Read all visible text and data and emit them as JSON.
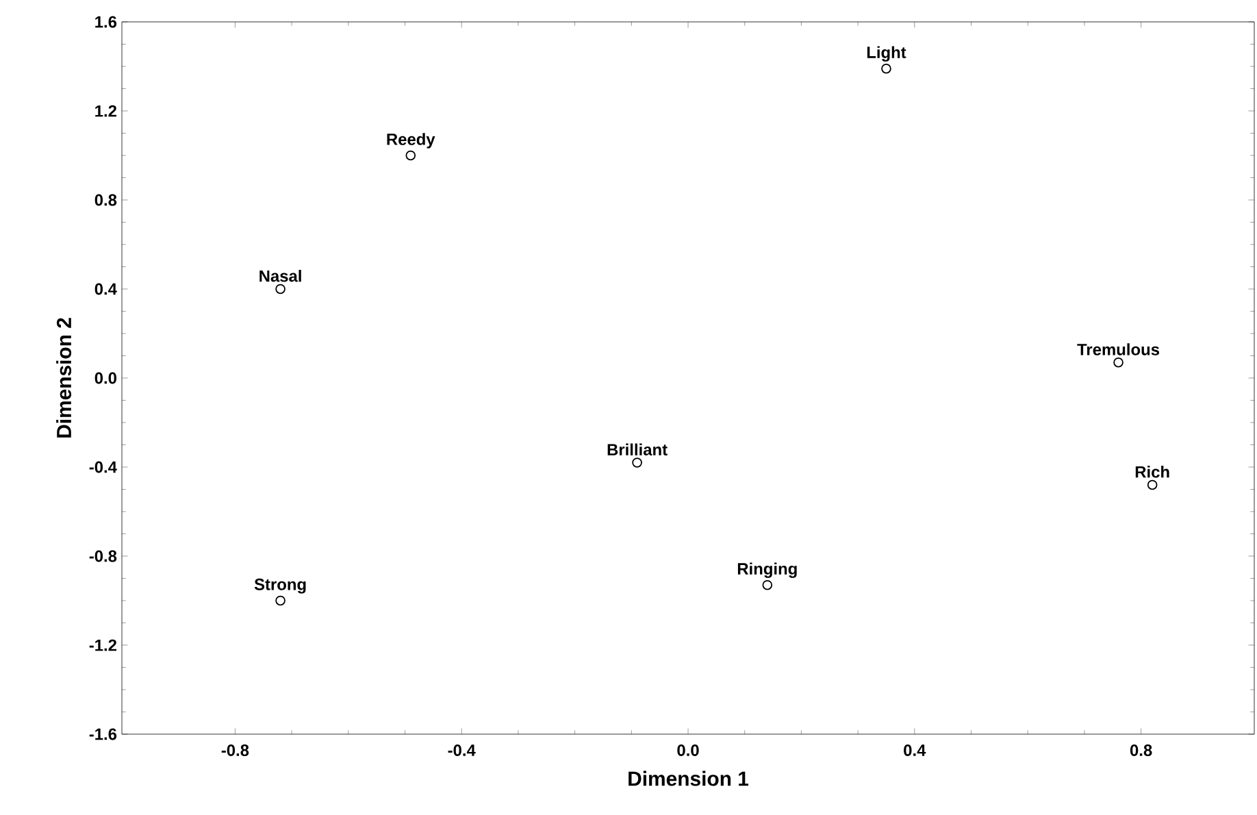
{
  "chart_data": {
    "type": "scatter",
    "xlabel": "Dimension 1",
    "ylabel": "Dimension 2",
    "x": [
      0.35,
      -0.49,
      -0.72,
      0.76,
      -0.09,
      0.82,
      0.14,
      -0.72
    ],
    "values": [
      1.39,
      1.0,
      0.4,
      0.07,
      -0.38,
      -0.48,
      -0.93,
      -1.0
    ],
    "color": "#000000",
    "marker": "circle",
    "annotations": [
      {
        "text": "Light",
        "x": 0.35,
        "y": 1.39
      },
      {
        "text": "Reedy",
        "x": -0.49,
        "y": 1.0
      },
      {
        "text": "Nasal",
        "x": -0.72,
        "y": 0.4
      },
      {
        "text": "Tremulous",
        "x": 0.76,
        "y": 0.07
      },
      {
        "text": "Brilliant",
        "x": -0.09,
        "y": -0.38
      },
      {
        "text": "Rich",
        "x": 0.82,
        "y": -0.48
      },
      {
        "text": "Ringing",
        "x": 0.14,
        "y": -0.93
      },
      {
        "text": "Strong",
        "x": -0.72,
        "y": -1.0
      }
    ],
    "xlim": [
      -1.0,
      1.0
    ],
    "ylim": [
      -1.6,
      1.6
    ],
    "xticks": [
      -0.8,
      -0.4,
      {
        "value": 0,
        "label": "0.0"
      },
      0.4,
      0.8
    ],
    "yticks": [
      -1.6,
      -1.2,
      -0.8,
      -0.4,
      {
        "value": 0,
        "label": "0.0"
      },
      0.4,
      0.8,
      1.2,
      1.6
    ]
  }
}
